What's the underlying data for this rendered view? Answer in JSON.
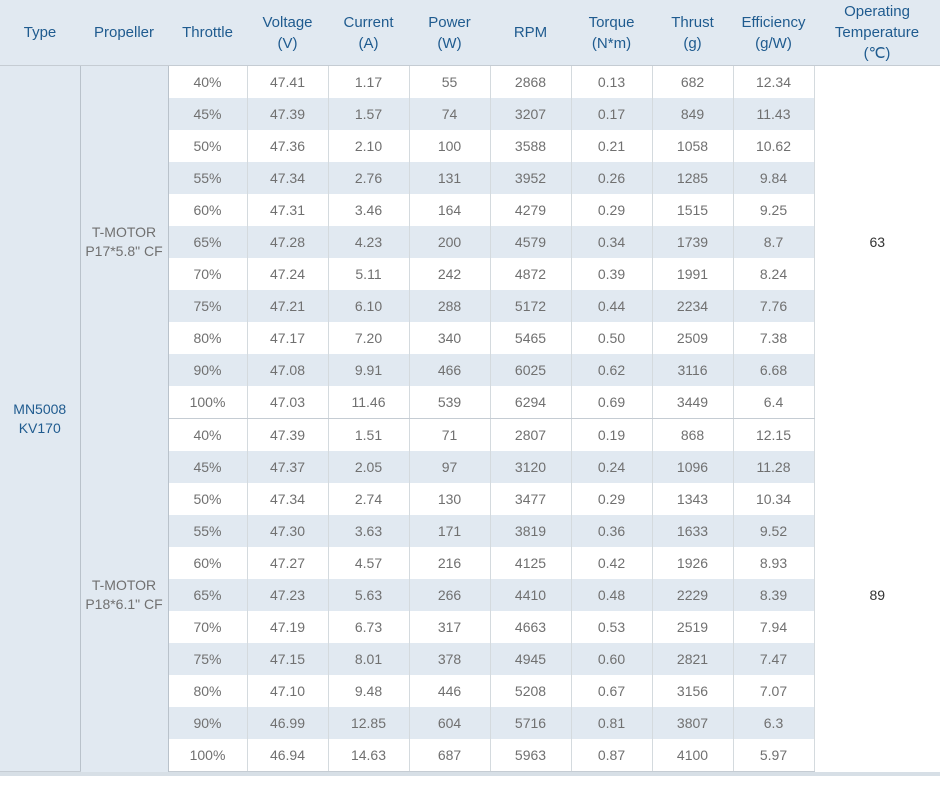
{
  "header": {
    "type": "Type",
    "propeller": "Propeller",
    "throttle": "Throttle",
    "voltage": [
      "Voltage",
      "(V)"
    ],
    "current": [
      "Current",
      "(A)"
    ],
    "power": [
      "Power",
      "(W)"
    ],
    "rpm": "RPM",
    "torque": [
      "Torque",
      "(N*m)"
    ],
    "thrust": [
      "Thrust",
      "(g)"
    ],
    "efficiency": [
      "Efficiency",
      "(g/W)"
    ],
    "temperature": [
      "Operating",
      "Temperature",
      "(℃)"
    ]
  },
  "motor_type": [
    "MN5008",
    "KV170"
  ],
  "groups": [
    {
      "propeller": [
        "T-MOTOR",
        "P17*5.8\" CF"
      ],
      "temperature": "63",
      "rows": [
        [
          "40%",
          "47.41",
          "1.17",
          "55",
          "2868",
          "0.13",
          "682",
          "12.34"
        ],
        [
          "45%",
          "47.39",
          "1.57",
          "74",
          "3207",
          "0.17",
          "849",
          "11.43"
        ],
        [
          "50%",
          "47.36",
          "2.10",
          "100",
          "3588",
          "0.21",
          "1058",
          "10.62"
        ],
        [
          "55%",
          "47.34",
          "2.76",
          "131",
          "3952",
          "0.26",
          "1285",
          "9.84"
        ],
        [
          "60%",
          "47.31",
          "3.46",
          "164",
          "4279",
          "0.29",
          "1515",
          "9.25"
        ],
        [
          "65%",
          "47.28",
          "4.23",
          "200",
          "4579",
          "0.34",
          "1739",
          "8.7"
        ],
        [
          "70%",
          "47.24",
          "5.11",
          "242",
          "4872",
          "0.39",
          "1991",
          "8.24"
        ],
        [
          "75%",
          "47.21",
          "6.10",
          "288",
          "5172",
          "0.44",
          "2234",
          "7.76"
        ],
        [
          "80%",
          "47.17",
          "7.20",
          "340",
          "5465",
          "0.50",
          "2509",
          "7.38"
        ],
        [
          "90%",
          "47.08",
          "9.91",
          "466",
          "6025",
          "0.62",
          "3116",
          "6.68"
        ],
        [
          "100%",
          "47.03",
          "11.46",
          "539",
          "6294",
          "0.69",
          "3449",
          "6.4"
        ]
      ]
    },
    {
      "propeller": [
        "T-MOTOR",
        "P18*6.1\" CF"
      ],
      "temperature": "89",
      "rows": [
        [
          "40%",
          "47.39",
          "1.51",
          "71",
          "2807",
          "0.19",
          "868",
          "12.15"
        ],
        [
          "45%",
          "47.37",
          "2.05",
          "97",
          "3120",
          "0.24",
          "1096",
          "11.28"
        ],
        [
          "50%",
          "47.34",
          "2.74",
          "130",
          "3477",
          "0.29",
          "1343",
          "10.34"
        ],
        [
          "55%",
          "47.30",
          "3.63",
          "171",
          "3819",
          "0.36",
          "1633",
          "9.52"
        ],
        [
          "60%",
          "47.27",
          "4.57",
          "216",
          "4125",
          "0.42",
          "1926",
          "8.93"
        ],
        [
          "65%",
          "47.23",
          "5.63",
          "266",
          "4410",
          "0.48",
          "2229",
          "8.39"
        ],
        [
          "70%",
          "47.19",
          "6.73",
          "317",
          "4663",
          "0.53",
          "2519",
          "7.94"
        ],
        [
          "75%",
          "47.15",
          "8.01",
          "378",
          "4945",
          "0.60",
          "2821",
          "7.47"
        ],
        [
          "80%",
          "47.10",
          "9.48",
          "446",
          "5208",
          "0.67",
          "3156",
          "7.07"
        ],
        [
          "90%",
          "46.99",
          "12.85",
          "604",
          "5716",
          "0.81",
          "3807",
          "6.3"
        ],
        [
          "100%",
          "46.94",
          "14.63",
          "687",
          "5963",
          "0.87",
          "4100",
          "5.97"
        ]
      ]
    }
  ]
}
